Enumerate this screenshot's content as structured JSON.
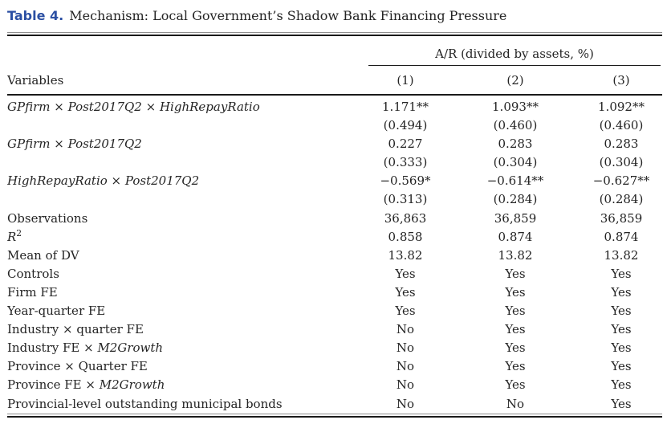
{
  "caption": {
    "label": "Table 4.",
    "text": "Mechanism: Local Government’s Shadow Bank Financing Pressure"
  },
  "header": {
    "spanner": "A/R (divided by assets, %)",
    "variables_label": "Variables",
    "columns": [
      "(1)",
      "(2)",
      "(3)"
    ]
  },
  "rows": [
    {
      "label": [
        {
          "t": "GPfirm",
          "i": true
        },
        {
          "t": " × "
        },
        {
          "t": "Post2017Q2",
          "i": true
        },
        {
          "t": " × "
        },
        {
          "t": "HighRepayRatio",
          "i": true
        }
      ],
      "cells": [
        "1.171**",
        "1.093**",
        "1.092**"
      ]
    },
    {
      "label": [],
      "cells": [
        "(0.494)",
        "(0.460)",
        "(0.460)"
      ]
    },
    {
      "label": [
        {
          "t": "GPfirm",
          "i": true
        },
        {
          "t": " × "
        },
        {
          "t": "Post2017Q2",
          "i": true
        }
      ],
      "cells": [
        "0.227",
        "0.283",
        "0.283"
      ]
    },
    {
      "label": [],
      "cells": [
        "(0.333)",
        "(0.304)",
        "(0.304)"
      ]
    },
    {
      "label": [
        {
          "t": "HighRepayRatio",
          "i": true
        },
        {
          "t": " × "
        },
        {
          "t": "Post2017Q2",
          "i": true
        }
      ],
      "cells": [
        "−0.569*",
        "−0.614**",
        "−0.627**"
      ]
    },
    {
      "label": [],
      "cells": [
        "(0.313)",
        "(0.284)",
        "(0.284)"
      ]
    },
    {
      "label": [
        {
          "t": "Observations"
        }
      ],
      "cells": [
        "36,863",
        "36,859",
        "36,859"
      ]
    },
    {
      "label": [
        {
          "t": "R",
          "i": true
        },
        {
          "t": "2",
          "sup": true
        }
      ],
      "cells": [
        "0.858",
        "0.874",
        "0.874"
      ]
    },
    {
      "label": [
        {
          "t": "Mean of DV"
        }
      ],
      "cells": [
        "13.82",
        "13.82",
        "13.82"
      ]
    },
    {
      "label": [
        {
          "t": "Controls"
        }
      ],
      "cells": [
        "Yes",
        "Yes",
        "Yes"
      ]
    },
    {
      "label": [
        {
          "t": "Firm FE"
        }
      ],
      "cells": [
        "Yes",
        "Yes",
        "Yes"
      ]
    },
    {
      "label": [
        {
          "t": "Year-quarter FE"
        }
      ],
      "cells": [
        "Yes",
        "Yes",
        "Yes"
      ]
    },
    {
      "label": [
        {
          "t": "Industry × quarter FE"
        }
      ],
      "cells": [
        "No",
        "Yes",
        "Yes"
      ]
    },
    {
      "label": [
        {
          "t": "Industry FE × "
        },
        {
          "t": "M2Growth",
          "i": true
        }
      ],
      "cells": [
        "No",
        "Yes",
        "Yes"
      ]
    },
    {
      "label": [
        {
          "t": "Province × Quarter FE"
        }
      ],
      "cells": [
        "No",
        "Yes",
        "Yes"
      ]
    },
    {
      "label": [
        {
          "t": "Province FE × "
        },
        {
          "t": "M2Growth",
          "i": true
        }
      ],
      "cells": [
        "No",
        "Yes",
        "Yes"
      ]
    },
    {
      "label": [
        {
          "t": "Provincial-level outstanding municipal bonds"
        }
      ],
      "cells": [
        "No",
        "No",
        "Yes"
      ]
    }
  ],
  "colors": {
    "caption_label": "#2b4fa3",
    "text": "#242424",
    "rule": "#1a1a1a"
  }
}
